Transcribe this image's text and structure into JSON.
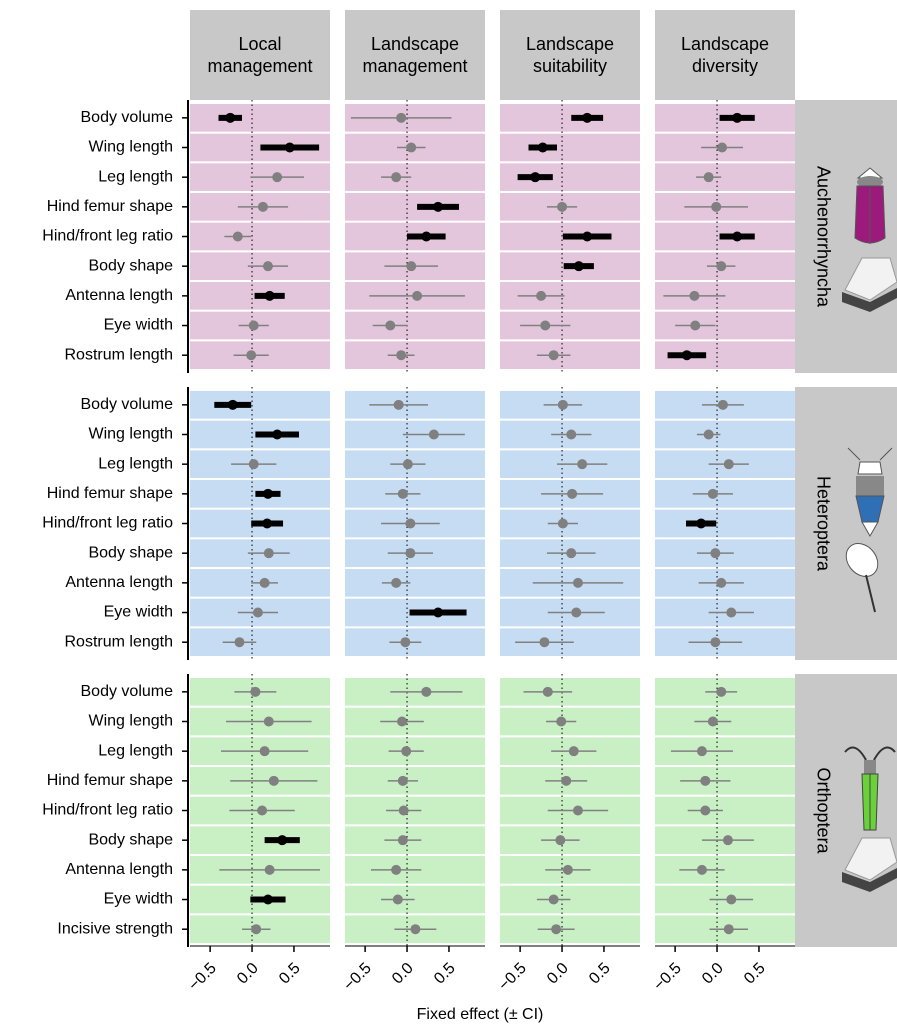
{
  "chart_data": {
    "type": "forest",
    "x_label": "Fixed effect (± CI)",
    "panels": [
      "Local management",
      "Landscape management",
      "Landscape suitability",
      "Landscape diversity"
    ],
    "xlim": [
      -0.74,
      0.93
    ],
    "xticks": [
      {
        "value": -0.5,
        "label": "−0.5"
      },
      {
        "value": 0,
        "label": "0.0"
      },
      0.5
    ],
    "reference_line": 0,
    "significant_color": "#000000",
    "nonsignificant_color": "#808080",
    "strip_color": "#c8c8c8",
    "groups": [
      {
        "name": "Auchenorrhyncha",
        "background": "#e4c6dc",
        "traits": [
          "Body volume",
          "Wing length",
          "Leg length",
          "Hind femur shape",
          "Hind/front leg ratio",
          "Body shape",
          "Antenna length",
          "Eye width",
          "Rostrum length"
        ],
        "panels": [
          {
            "values": [
              -0.26,
              0.45,
              0.3,
              0.13,
              -0.17,
              0.19,
              0.21,
              0.02,
              -0.01
            ],
            "ci": [
              0.14,
              0.35,
              0.32,
              0.3,
              0.16,
              0.24,
              0.18,
              0.18,
              0.21
            ],
            "significant": [
              true,
              true,
              false,
              false,
              false,
              false,
              true,
              false,
              false
            ]
          },
          {
            "values": [
              -0.07,
              0.05,
              -0.13,
              0.37,
              0.23,
              0.05,
              0.12,
              -0.2,
              -0.07
            ],
            "ci": [
              0.6,
              0.17,
              0.18,
              0.25,
              0.23,
              0.32,
              0.57,
              0.21,
              0.16
            ],
            "significant": [
              false,
              false,
              false,
              true,
              true,
              false,
              false,
              false,
              false
            ]
          },
          {
            "values": [
              0.3,
              -0.23,
              -0.32,
              0.0,
              0.3,
              0.2,
              -0.25,
              -0.2,
              -0.1
            ],
            "ci": [
              0.19,
              0.17,
              0.21,
              0.18,
              0.29,
              0.18,
              0.28,
              0.3,
              0.2
            ],
            "significant": [
              true,
              true,
              true,
              false,
              true,
              true,
              false,
              false,
              false
            ]
          },
          {
            "values": [
              0.24,
              0.06,
              -0.1,
              -0.01,
              0.24,
              0.05,
              -0.27,
              -0.26,
              -0.36
            ],
            "ci": [
              0.21,
              0.25,
              0.15,
              0.38,
              0.21,
              0.17,
              0.37,
              0.24,
              0.23
            ],
            "significant": [
              true,
              false,
              false,
              false,
              true,
              false,
              false,
              false,
              true
            ]
          }
        ]
      },
      {
        "name": "Heteroptera",
        "background": "#c6dcf2",
        "traits": [
          "Body volume",
          "Wing length",
          "Leg length",
          "Hind femur shape",
          "Hind/front leg ratio",
          "Body shape",
          "Antenna length",
          "Eye width",
          "Rostrum length"
        ],
        "panels": [
          {
            "values": [
              -0.23,
              0.3,
              0.02,
              0.19,
              0.18,
              0.2,
              0.15,
              0.07,
              -0.15
            ],
            "ci": [
              0.22,
              0.26,
              0.27,
              0.15,
              0.19,
              0.25,
              0.16,
              0.24,
              0.2
            ],
            "significant": [
              true,
              true,
              false,
              true,
              true,
              false,
              false,
              false,
              false
            ]
          },
          {
            "values": [
              -0.1,
              0.32,
              0.01,
              -0.05,
              0.04,
              0.04,
              -0.13,
              0.37,
              -0.02
            ],
            "ci": [
              0.35,
              0.37,
              0.21,
              0.21,
              0.35,
              0.27,
              0.17,
              0.34,
              0.19
            ],
            "significant": [
              false,
              false,
              false,
              false,
              false,
              false,
              false,
              true,
              false
            ]
          },
          {
            "values": [
              0.01,
              0.11,
              0.24,
              0.12,
              0.01,
              0.11,
              0.19,
              0.17,
              -0.21
            ],
            "ci": [
              0.23,
              0.24,
              0.3,
              0.37,
              0.18,
              0.29,
              0.54,
              0.34,
              0.35
            ],
            "significant": [
              false,
              false,
              false,
              false,
              false,
              false,
              false,
              false,
              false
            ]
          },
          {
            "values": [
              0.07,
              -0.1,
              0.14,
              -0.05,
              -0.19,
              -0.02,
              0.05,
              0.17,
              -0.02
            ],
            "ci": [
              0.25,
              0.14,
              0.24,
              0.24,
              0.18,
              0.22,
              0.27,
              0.27,
              0.32
            ],
            "significant": [
              false,
              false,
              false,
              false,
              true,
              false,
              false,
              false,
              false
            ]
          }
        ]
      },
      {
        "name": "Orthoptera",
        "background": "#c8f0c4",
        "traits": [
          "Body volume",
          "Wing length",
          "Leg length",
          "Hind femur shape",
          "Hind/front leg ratio",
          "Body shape",
          "Antenna length",
          "Eye width",
          "Incisive strength"
        ],
        "panels": [
          {
            "values": [
              0.04,
              0.2,
              0.15,
              0.26,
              0.12,
              0.36,
              0.21,
              0.19,
              0.05
            ],
            "ci": [
              0.25,
              0.51,
              0.52,
              0.52,
              0.39,
              0.21,
              0.6,
              0.21,
              0.17
            ],
            "significant": [
              false,
              false,
              false,
              false,
              false,
              true,
              false,
              true,
              false
            ]
          },
          {
            "values": [
              0.23,
              -0.06,
              -0.01,
              -0.05,
              -0.04,
              -0.05,
              -0.13,
              -0.11,
              0.1
            ],
            "ci": [
              0.43,
              0.26,
              0.21,
              0.18,
              0.21,
              0.22,
              0.3,
              0.2,
              0.25
            ],
            "significant": [
              false,
              false,
              false,
              false,
              false,
              false,
              false,
              false,
              false
            ]
          },
          {
            "values": [
              -0.17,
              -0.01,
              0.14,
              0.05,
              0.19,
              -0.02,
              0.07,
              -0.1,
              -0.07
            ],
            "ci": [
              0.29,
              0.18,
              0.27,
              0.25,
              0.36,
              0.23,
              0.27,
              0.2,
              0.22
            ],
            "significant": [
              false,
              false,
              false,
              false,
              false,
              false,
              false,
              false,
              false
            ]
          },
          {
            "values": [
              0.05,
              -0.05,
              -0.18,
              -0.14,
              -0.14,
              0.13,
              -0.18,
              0.17,
              0.14
            ],
            "ci": [
              0.19,
              0.22,
              0.37,
              0.3,
              0.21,
              0.31,
              0.27,
              0.26,
              0.23
            ],
            "significant": [
              false,
              false,
              false,
              false,
              false,
              false,
              false,
              false,
              false
            ]
          }
        ]
      }
    ]
  }
}
